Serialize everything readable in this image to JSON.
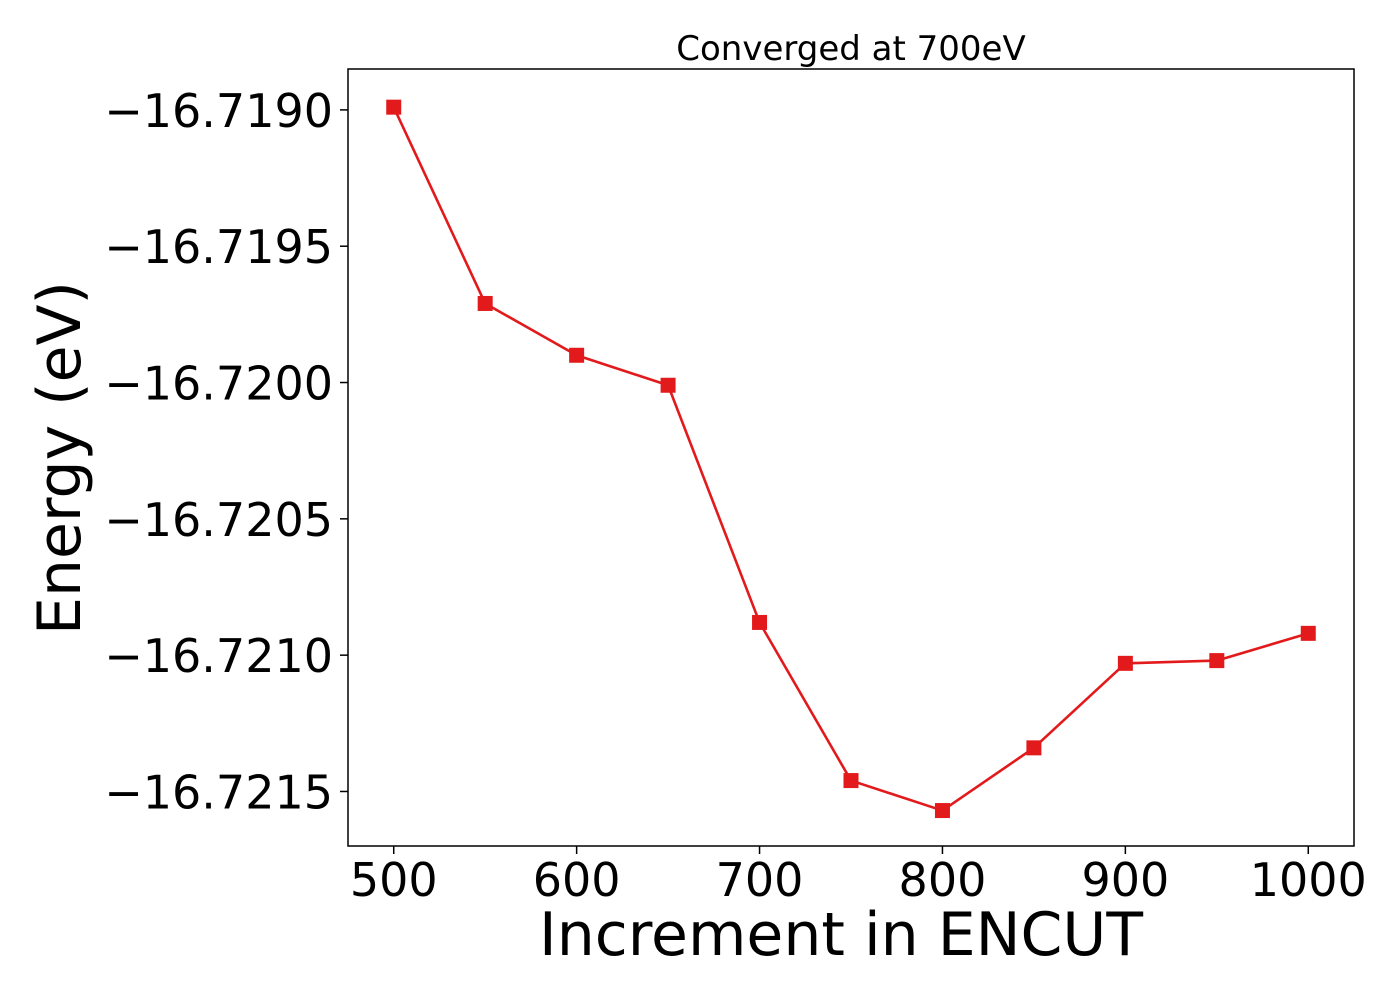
{
  "chart_data": {
    "type": "line",
    "title": "Converged at 700eV",
    "xlabel": "Increment in ENCUT",
    "ylabel": "Energy (eV)",
    "x": [
      500,
      550,
      600,
      650,
      700,
      750,
      800,
      850,
      900,
      950,
      1000
    ],
    "series": [
      {
        "values": [
          -16.71899,
          -16.71971,
          -16.7199,
          -16.72001,
          -16.72088,
          -16.72146,
          -16.72157,
          -16.72134,
          -16.72103,
          -16.72102,
          -16.72092
        ],
        "color": "#e31a1c",
        "marker": "square"
      }
    ],
    "xlim": [
      475,
      1025
    ],
    "ylim": [
      -16.7217,
      -16.71885
    ],
    "xticks": [
      500,
      600,
      700,
      800,
      900,
      1000
    ],
    "xtick_labels": [
      "500",
      "600",
      "700",
      "800",
      "900",
      "1000"
    ],
    "yticks": [
      -16.719,
      -16.7195,
      -16.72,
      -16.7205,
      -16.721,
      -16.7215
    ],
    "ytick_labels": [
      "−16.7190",
      "−16.7195",
      "−16.7200",
      "−16.7205",
      "−16.7210",
      "−16.7215"
    ],
    "grid": false,
    "legend": false
  }
}
